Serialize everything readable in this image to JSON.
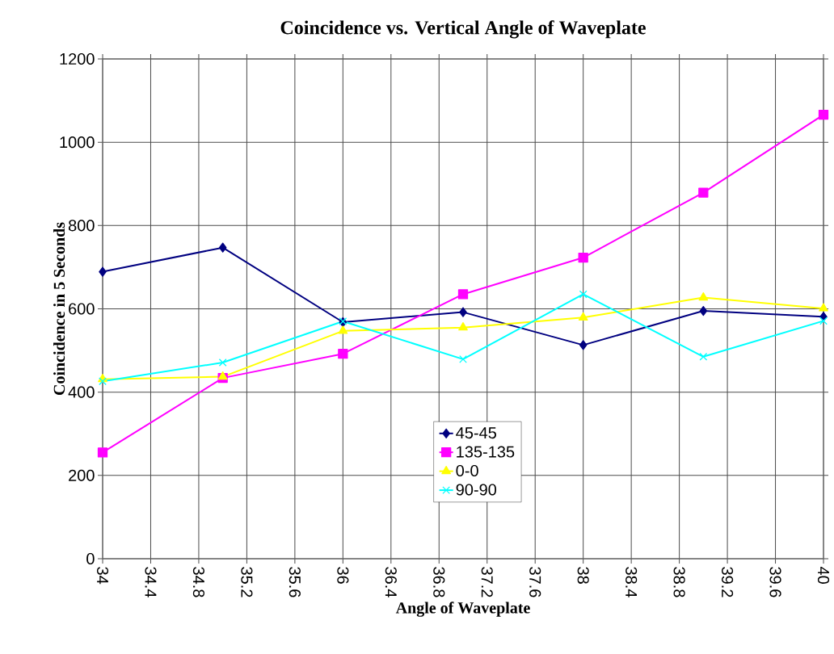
{
  "chart_data": {
    "type": "line",
    "title": "Coincidence vs. Vertical Angle of Waveplate",
    "xlabel": "Angle of Waveplate",
    "ylabel": "Coincidence in 5 Seconds",
    "x": [
      34,
      35,
      36,
      37,
      38,
      39,
      40
    ],
    "series": [
      {
        "name": "45-45",
        "color": "#000080",
        "marker": "diamond",
        "values": [
          689,
          747,
          568,
          592,
          513,
          595,
          581
        ]
      },
      {
        "name": "135-135",
        "color": "#ff00ff",
        "marker": "square",
        "values": [
          255,
          434,
          492,
          635,
          723,
          879,
          1066
        ]
      },
      {
        "name": "0-0",
        "color": "#ffff00",
        "marker": "triangle",
        "values": [
          431,
          437,
          547,
          555,
          579,
          627,
          601
        ]
      },
      {
        "name": "90-90",
        "color": "#00ffff",
        "marker": "cross",
        "values": [
          426,
          471,
          570,
          479,
          635,
          485,
          571
        ]
      }
    ],
    "xlim": [
      34,
      40
    ],
    "xticks": [
      34,
      34.4,
      34.8,
      35.2,
      35.6,
      36,
      36.4,
      36.8,
      37.2,
      37.6,
      38,
      38.4,
      38.8,
      39.2,
      39.6,
      40
    ],
    "ylim": [
      0,
      1200
    ],
    "yticks": [
      0,
      200,
      400,
      600,
      800,
      1000,
      1200
    ],
    "grid": true,
    "legend": "bottom",
    "line_style": "solid"
  }
}
